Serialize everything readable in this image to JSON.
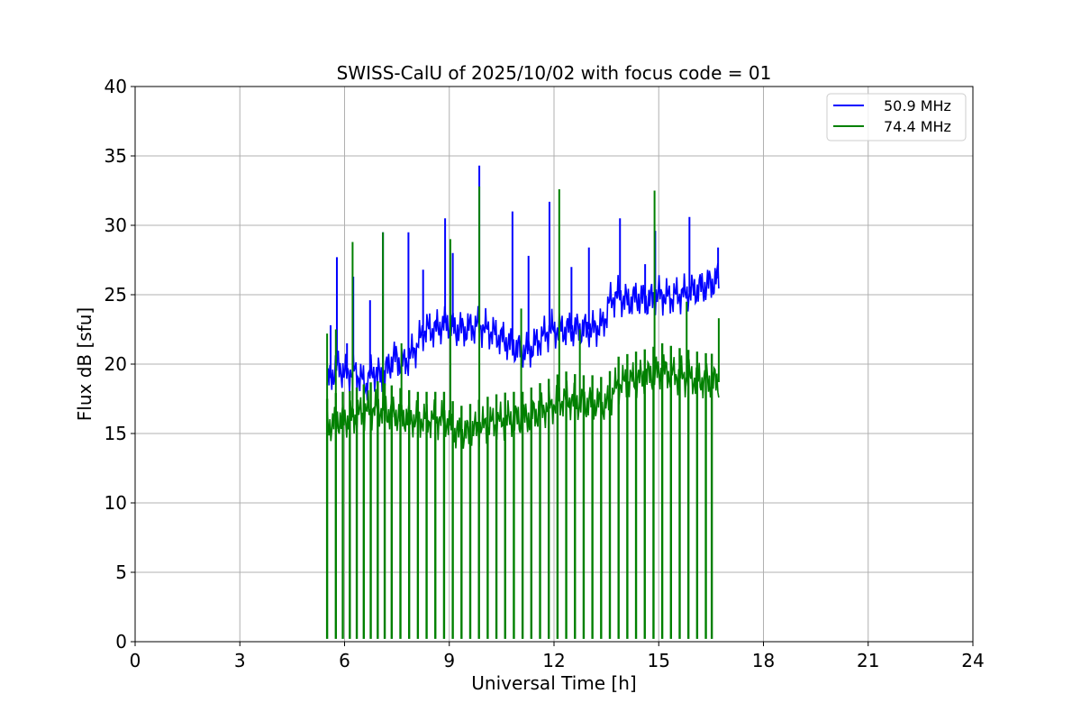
{
  "chart_data": {
    "type": "line",
    "title": "SWISS-CalU of 2025/10/02 with focus code = 01",
    "xlabel": "Universal Time [h]",
    "ylabel": "Flux dB [sfu]",
    "xlim": [
      0,
      24
    ],
    "ylim": [
      0,
      40
    ],
    "x_ticks": [
      0,
      3,
      6,
      9,
      12,
      15,
      18,
      21,
      24
    ],
    "y_ticks": [
      0,
      5,
      10,
      15,
      20,
      25,
      30,
      35,
      40
    ],
    "x_tick_labels": [
      "0",
      "3",
      "6",
      "9",
      "12",
      "15",
      "18",
      "21",
      "24"
    ],
    "y_tick_labels": [
      "0",
      "5",
      "10",
      "15",
      "20",
      "25",
      "30",
      "35",
      "40"
    ],
    "grid": true,
    "legend_position": "top-right",
    "series": [
      {
        "name": "50.9 MHz",
        "color": "#0000ff",
        "x": [
          5.5,
          5.6,
          5.8,
          6.0,
          6.3,
          6.6,
          6.8,
          7.1,
          7.4,
          7.7,
          8.0,
          8.3,
          8.6,
          8.9,
          9.2,
          9.5,
          9.8,
          10.1,
          10.4,
          10.7,
          11.0,
          11.3,
          11.6,
          11.9,
          12.2,
          12.5,
          12.8,
          13.1,
          13.4,
          13.6,
          13.8,
          14.1,
          14.4,
          14.7,
          15.0,
          15.3,
          15.6,
          15.9,
          16.2,
          16.5,
          16.72
        ],
        "values": [
          18.5,
          19.0,
          20.0,
          19.3,
          19.5,
          18.5,
          19.5,
          19.0,
          20.5,
          20.0,
          21.0,
          22.5,
          22.5,
          23.0,
          22.5,
          22.5,
          22.8,
          22.5,
          22.0,
          21.5,
          21.0,
          21.0,
          21.8,
          22.5,
          22.5,
          22.5,
          22.5,
          22.5,
          22.8,
          24.5,
          25.0,
          24.5,
          24.8,
          24.5,
          25.0,
          24.8,
          25.0,
          25.2,
          25.5,
          25.8,
          26.2
        ],
        "spikes": [
          {
            "x": 5.6,
            "value": 22.8
          },
          {
            "x": 5.78,
            "value": 27.7
          },
          {
            "x": 6.07,
            "value": 21.5
          },
          {
            "x": 6.25,
            "value": 26.3
          },
          {
            "x": 6.73,
            "value": 24.6
          },
          {
            "x": 7.1,
            "value": 29.5
          },
          {
            "x": 7.83,
            "value": 29.5
          },
          {
            "x": 8.25,
            "value": 26.8
          },
          {
            "x": 8.88,
            "value": 30.5
          },
          {
            "x": 9.1,
            "value": 28.0
          },
          {
            "x": 9.86,
            "value": 34.3
          },
          {
            "x": 10.81,
            "value": 31.0
          },
          {
            "x": 11.27,
            "value": 27.8
          },
          {
            "x": 11.87,
            "value": 31.7
          },
          {
            "x": 12.5,
            "value": 27.0
          },
          {
            "x": 13.0,
            "value": 28.4
          },
          {
            "x": 13.89,
            "value": 30.5
          },
          {
            "x": 14.61,
            "value": 27.2
          },
          {
            "x": 14.9,
            "value": 29.6
          },
          {
            "x": 15.88,
            "value": 30.6
          },
          {
            "x": 16.7,
            "value": 28.4
          }
        ]
      },
      {
        "name": "74.4 MHz",
        "color": "#008000",
        "x": [
          5.5,
          5.8,
          6.1,
          6.5,
          6.9,
          7.3,
          7.7,
          8.1,
          8.5,
          8.9,
          9.2,
          9.5,
          9.9,
          10.3,
          10.7,
          11.1,
          11.5,
          11.9,
          12.3,
          12.7,
          13.1,
          13.5,
          13.8,
          14.2,
          14.5,
          14.8,
          15.1,
          15.5,
          15.9,
          16.3,
          16.72
        ],
        "values": [
          15.5,
          16.0,
          16.0,
          16.5,
          16.8,
          16.5,
          16.2,
          16.0,
          16.0,
          16.0,
          15.0,
          15.0,
          15.5,
          15.8,
          16.0,
          16.0,
          16.5,
          17.0,
          17.5,
          17.2,
          17.2,
          17.0,
          18.5,
          18.8,
          19.0,
          19.2,
          19.5,
          19.2,
          19.0,
          18.8,
          18.7
        ],
        "spikes": [
          {
            "x": 5.5,
            "value": 22.2
          },
          {
            "x": 5.75,
            "value": 22.5
          },
          {
            "x": 6.23,
            "value": 28.8
          },
          {
            "x": 7.1,
            "value": 29.5
          },
          {
            "x": 7.63,
            "value": 21.5
          },
          {
            "x": 9.03,
            "value": 29.0
          },
          {
            "x": 9.86,
            "value": 32.8
          },
          {
            "x": 11.06,
            "value": 24.0
          },
          {
            "x": 12.15,
            "value": 32.6
          },
          {
            "x": 12.74,
            "value": 22.5
          },
          {
            "x": 14.88,
            "value": 32.5
          },
          {
            "x": 15.8,
            "value": 24.5
          },
          {
            "x": 16.72,
            "value": 23.3
          }
        ],
        "drops_to_zero_x": [
          5.5,
          5.75,
          5.95,
          6.15,
          6.35,
          6.55,
          6.75,
          6.95,
          7.15,
          7.35,
          7.6,
          7.85,
          8.1,
          8.35,
          8.6,
          8.85,
          9.1,
          9.35,
          9.6,
          9.85,
          10.1,
          10.35,
          10.6,
          10.85,
          11.1,
          11.35,
          11.6,
          11.85,
          12.1,
          12.35,
          12.6,
          12.85,
          13.1,
          13.35,
          13.6,
          13.85,
          14.1,
          14.35,
          14.6,
          14.85,
          15.1,
          15.35,
          15.6,
          15.85,
          16.1,
          16.35,
          16.52
        ]
      }
    ]
  }
}
